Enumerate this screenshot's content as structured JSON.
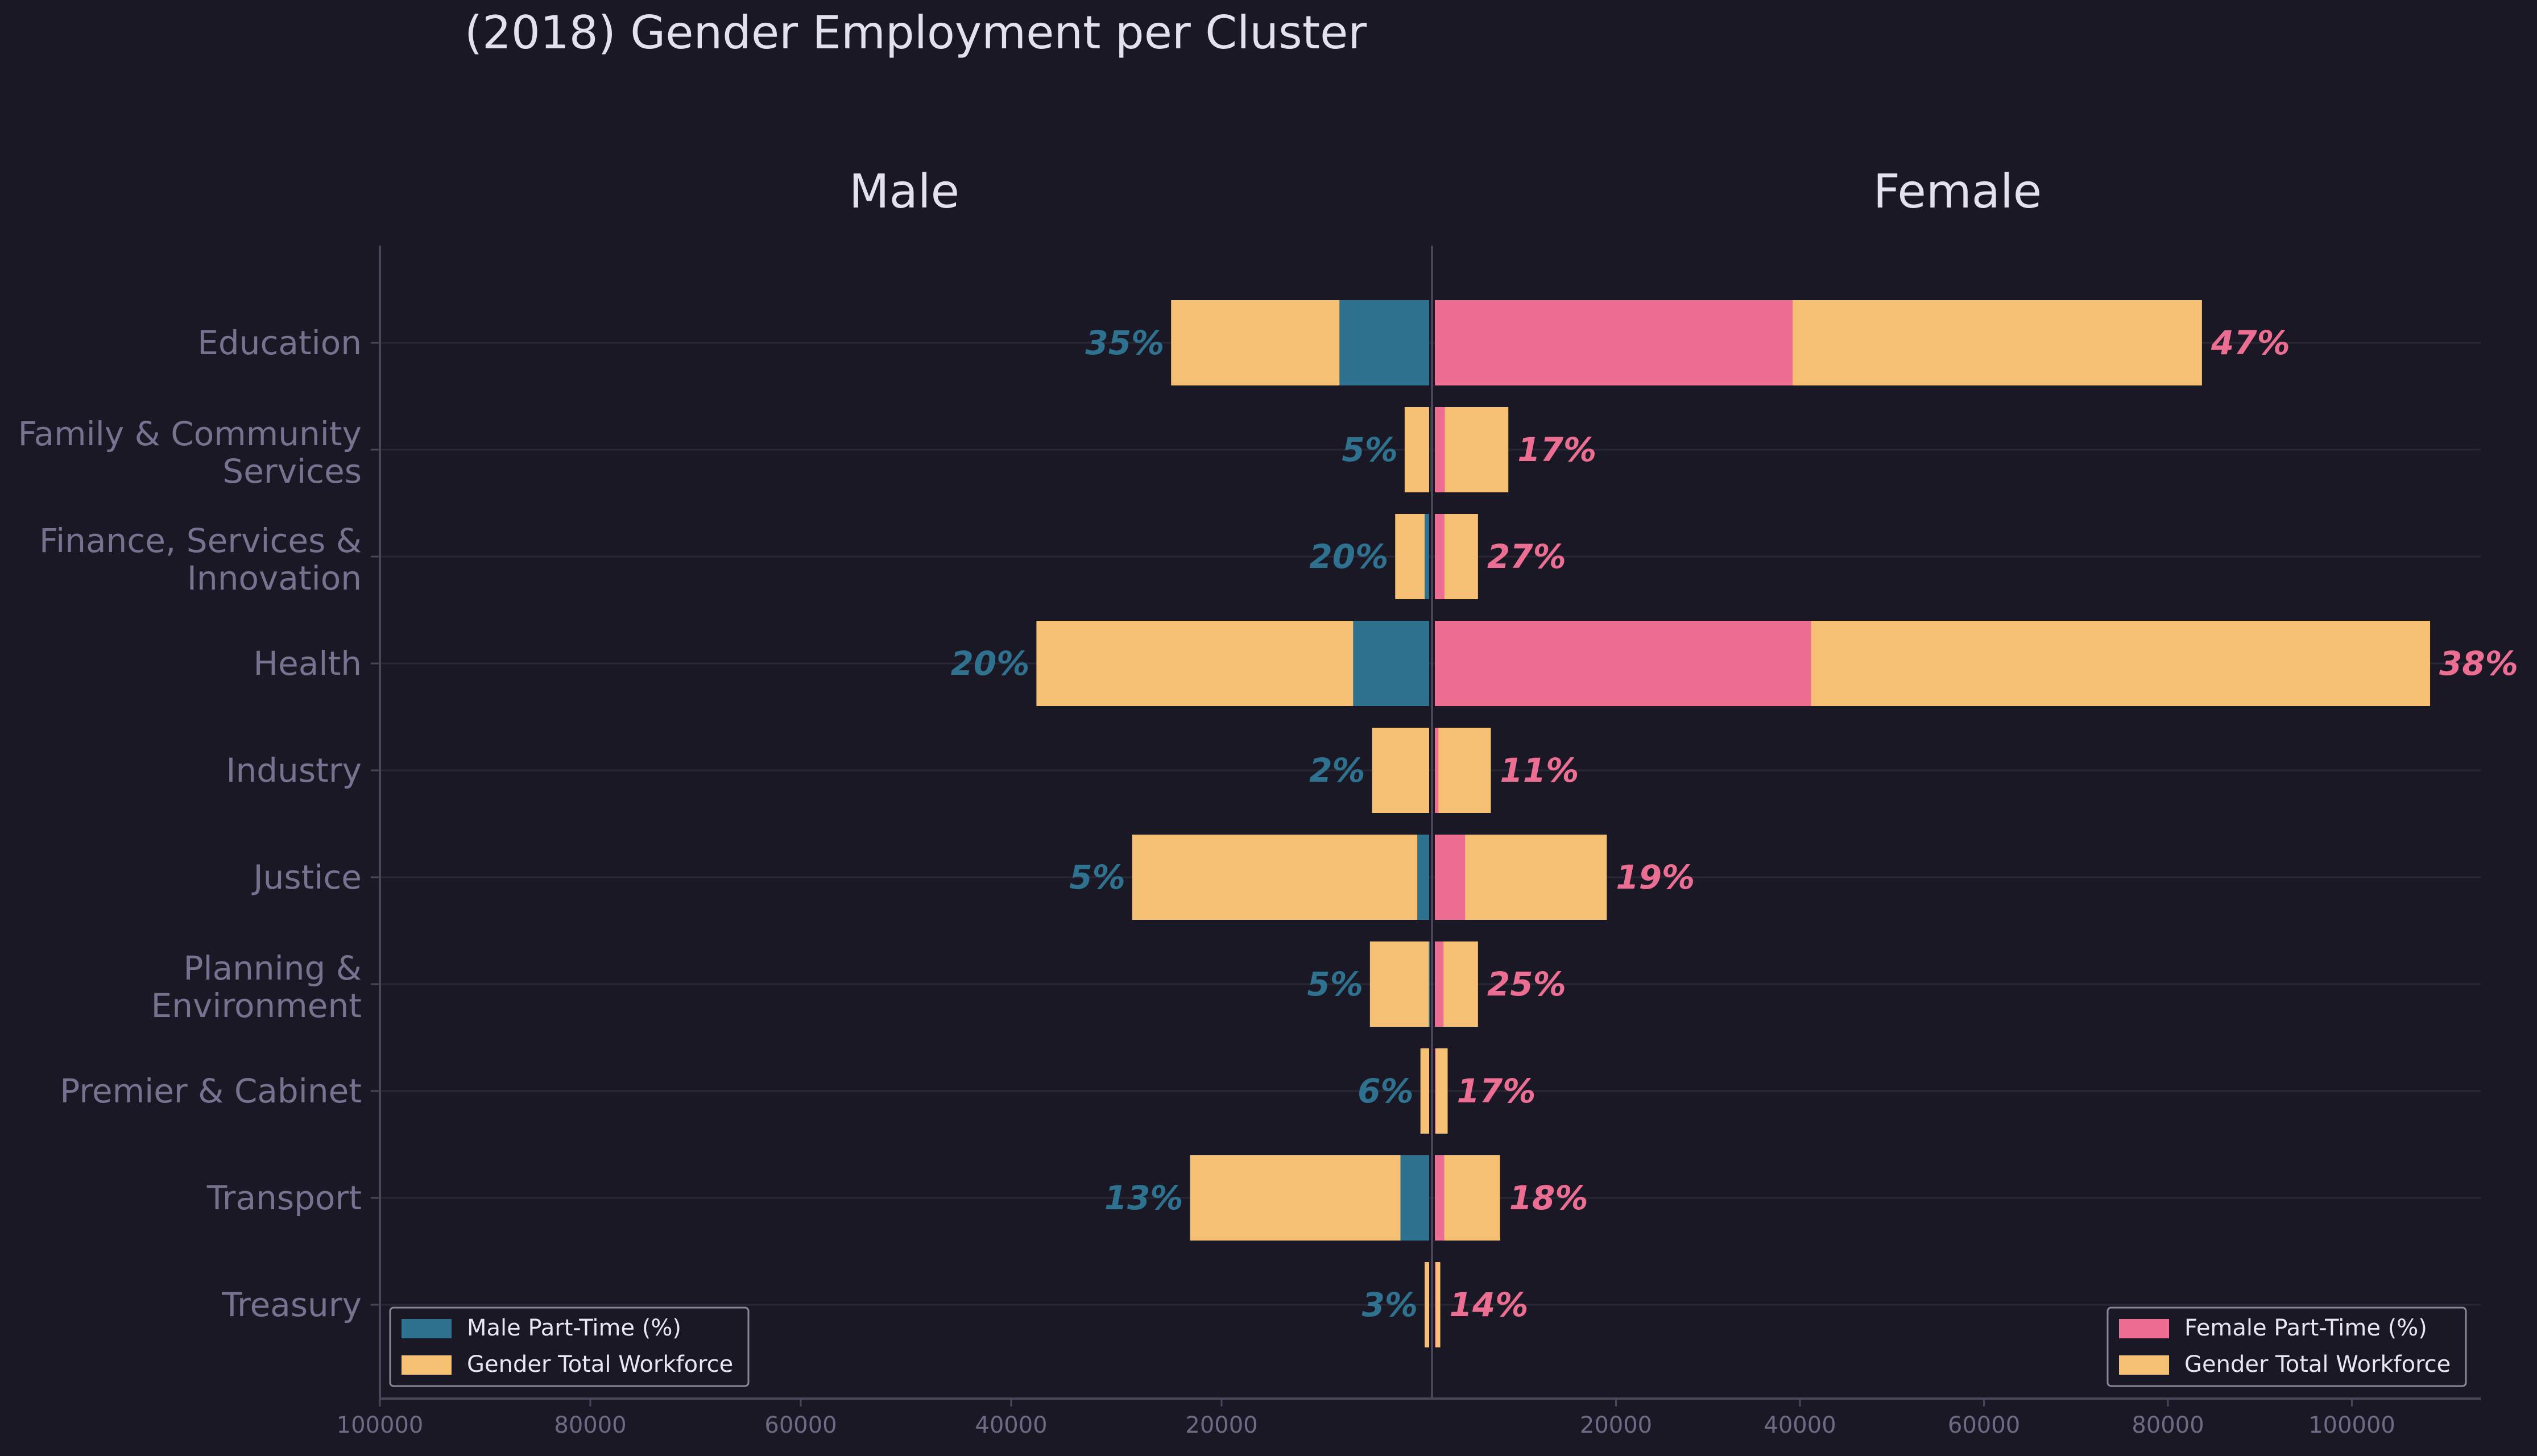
{
  "colors": {
    "background": "#1b1825",
    "male_part_time": "#2e7290",
    "female_part_time": "#ec6f93",
    "total_workforce": "#f5bf74",
    "text": "#e4e1ee",
    "category_text": "#777290",
    "tick_text": "#6e6a85",
    "axis_line": "#4a4659",
    "grid_line": "#2a2735"
  },
  "chart_data": {
    "type": "bar",
    "title": "(2018) Gender Employment per Cluster",
    "panel_titles": {
      "left": "Male",
      "right": "Female"
    },
    "categories": [
      [
        "Education"
      ],
      [
        "Family & Community",
        "Services"
      ],
      [
        "Finance, Services &",
        "Innovation"
      ],
      [
        "Health"
      ],
      [
        "Industry"
      ],
      [
        "Justice"
      ],
      [
        "Planning &",
        "Environment"
      ],
      [
        "Premier & Cabinet"
      ],
      [
        "Transport"
      ],
      [
        "Treasury"
      ]
    ],
    "male": {
      "total": [
        24800,
        2600,
        3500,
        37600,
        5700,
        28500,
        5900,
        1100,
        23000,
        700
      ],
      "part_time": [
        8800,
        130,
        700,
        7500,
        110,
        1400,
        300,
        70,
        3000,
        20
      ],
      "pct_labels": [
        "35%",
        "5%",
        "20%",
        "20%",
        "2%",
        "5%",
        "5%",
        "6%",
        "13%",
        "3%"
      ]
    },
    "female": {
      "total": [
        83700,
        8300,
        5000,
        108500,
        6400,
        19000,
        5000,
        1700,
        7400,
        900
      ],
      "part_time": [
        39200,
        1400,
        1350,
        41200,
        700,
        3600,
        1250,
        290,
        1330,
        130
      ],
      "pct_labels": [
        "47%",
        "17%",
        "27%",
        "38%",
        "11%",
        "19%",
        "25%",
        "17%",
        "18%",
        "14%"
      ]
    },
    "left_xlim": [
      100000,
      0
    ],
    "right_xlim": [
      0,
      114000
    ],
    "left_ticks": [
      "100000",
      "80000",
      "60000",
      "40000",
      "20000"
    ],
    "left_tick_values": [
      100000,
      80000,
      60000,
      40000,
      20000
    ],
    "right_ticks": [
      "20000",
      "40000",
      "60000",
      "80000",
      "100000"
    ],
    "right_tick_values": [
      20000,
      40000,
      60000,
      80000,
      100000
    ],
    "legend_left": {
      "placement": "lower-left",
      "entries": [
        "Male Part-Time (%)",
        "Gender Total Workforce"
      ]
    },
    "legend_right": {
      "placement": "lower-right",
      "entries": [
        "Female Part-Time (%)",
        "Gender Total Workforce"
      ]
    },
    "grid": "horizontal"
  }
}
